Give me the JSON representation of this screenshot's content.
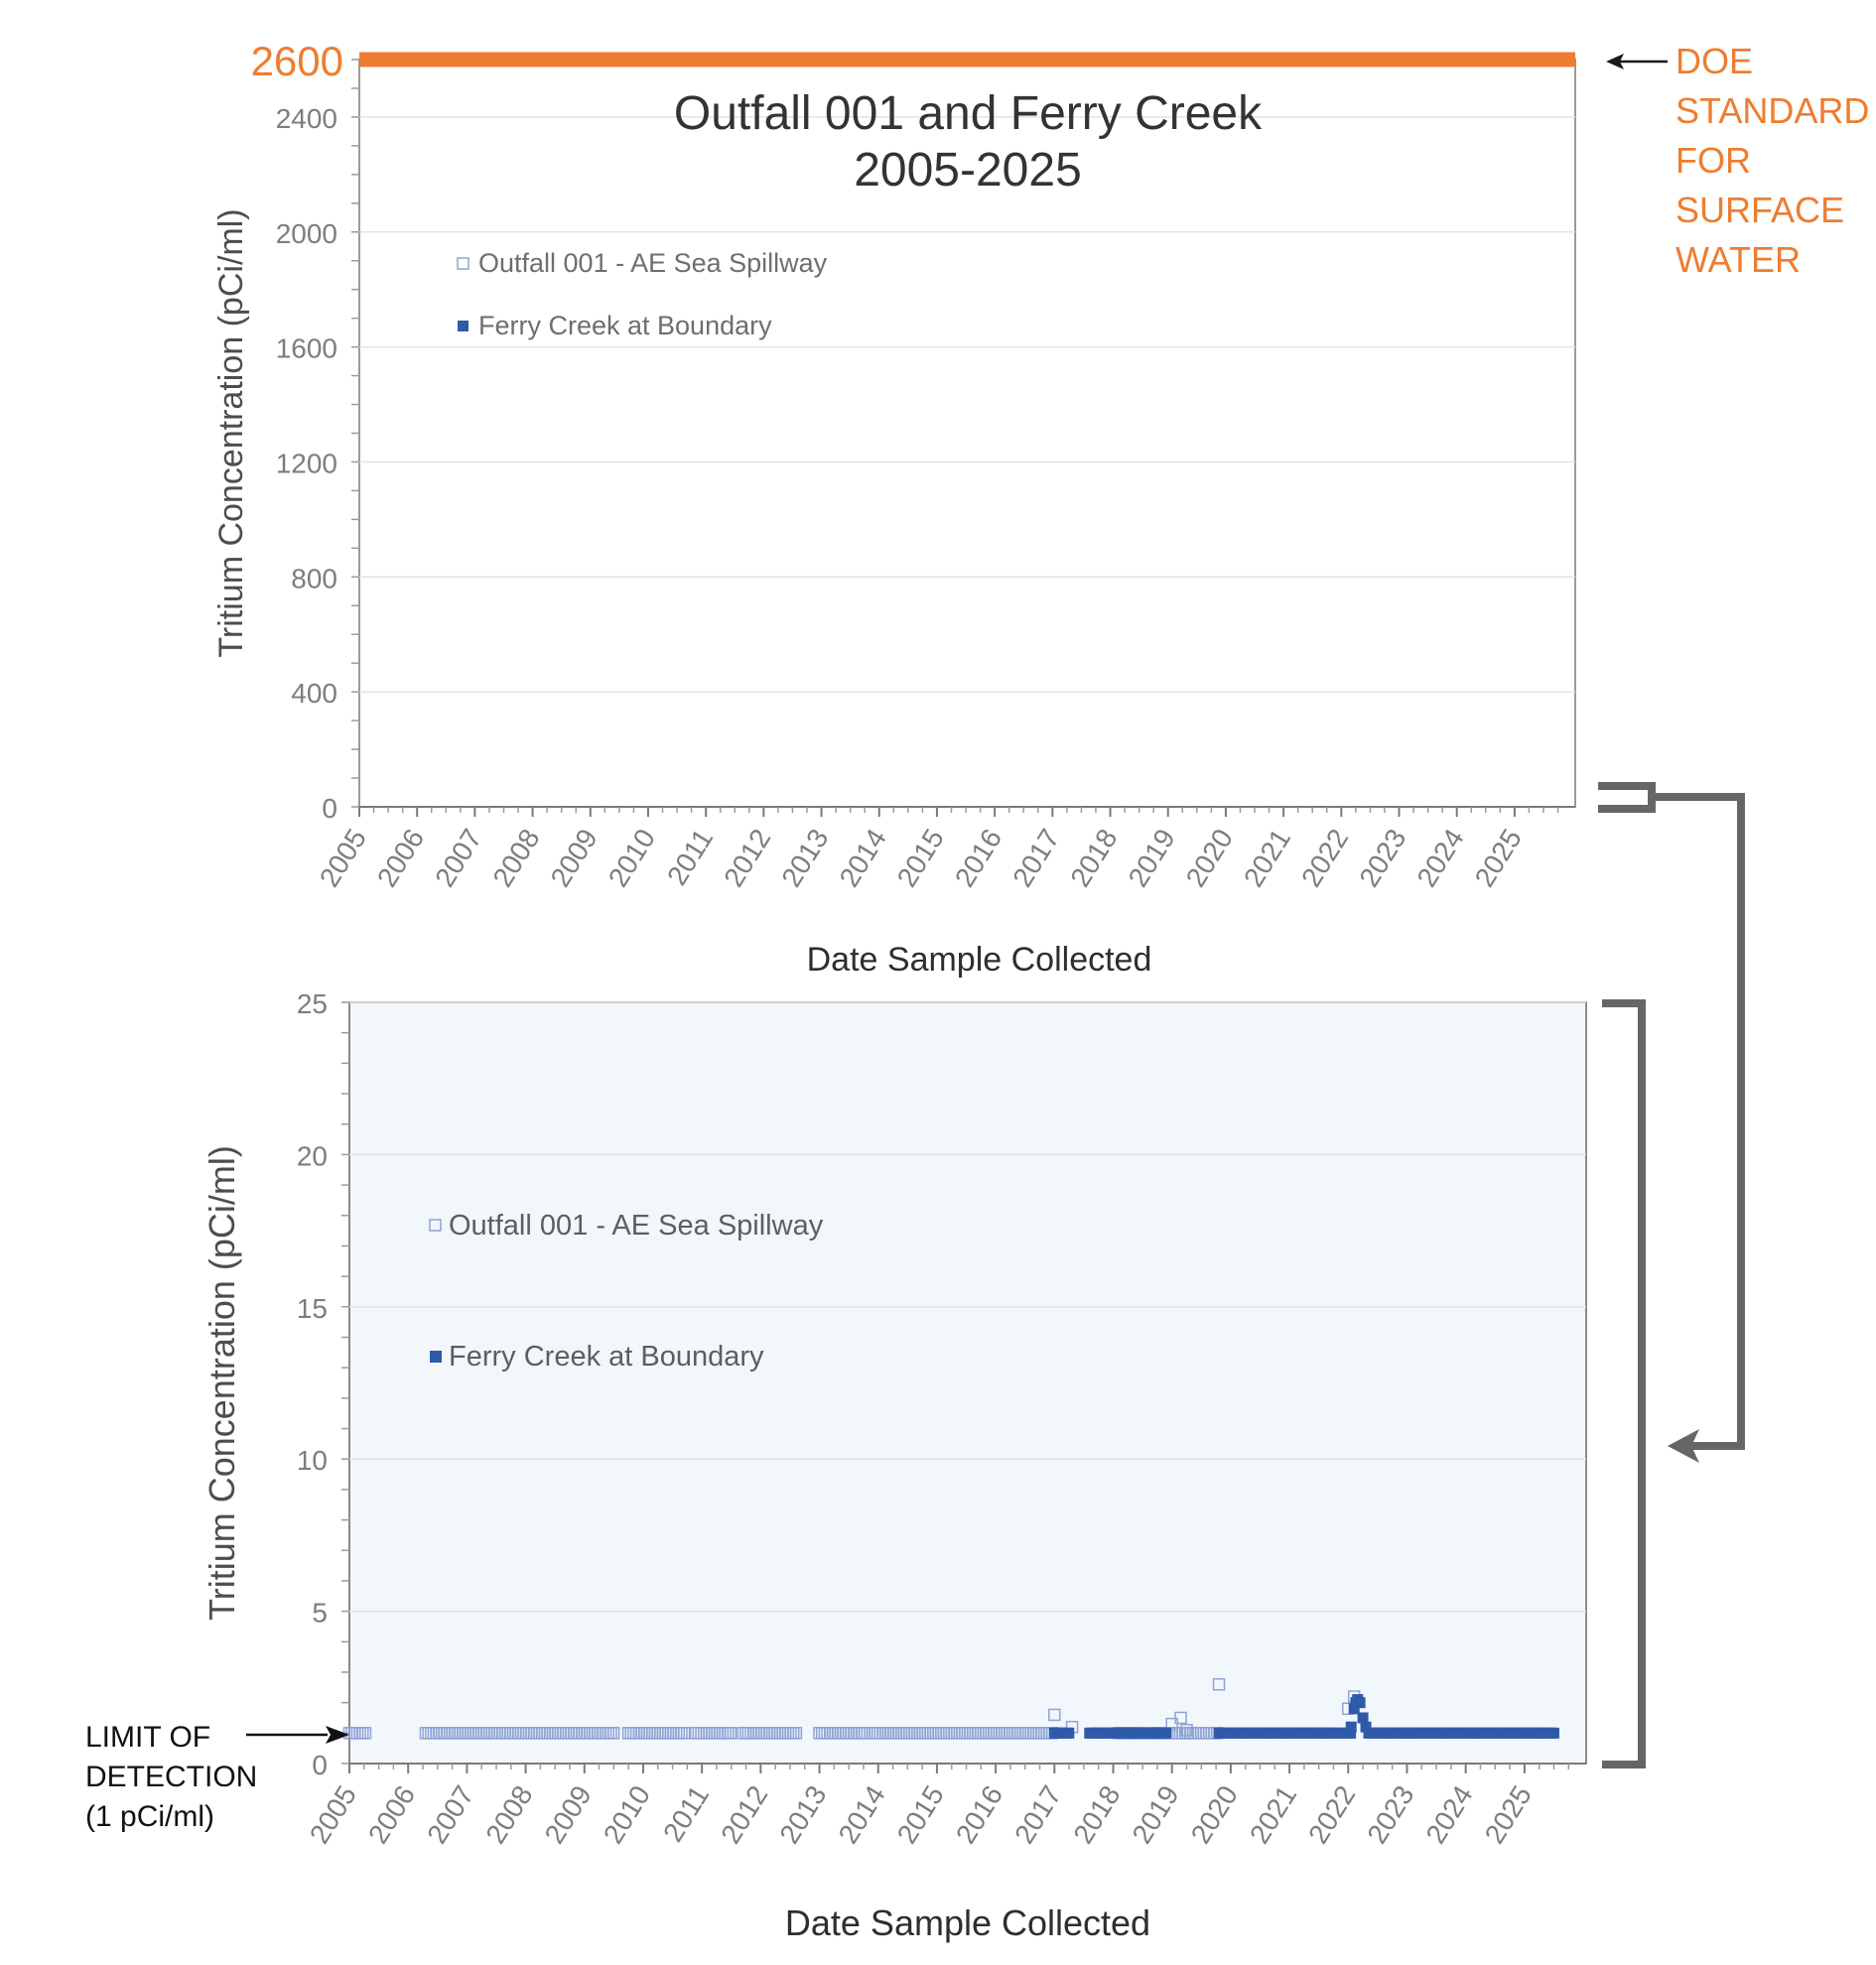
{
  "chart_data": [
    {
      "type": "scatter",
      "title": "Outfall 001 and Ferry Creek",
      "subtitle": "2005-2025",
      "xlabel": "Date Sample Collected",
      "ylabel": "Tritium Concentration (pCi/ml)",
      "ylim": [
        0,
        2600
      ],
      "yticks": [
        0,
        400,
        800,
        1200,
        1600,
        2000,
        2400
      ],
      "xlim": [
        2005,
        2026.05
      ],
      "xticks": [
        "2005",
        "2006",
        "2007",
        "2008",
        "2009",
        "2010",
        "2011",
        "2012",
        "2013",
        "2014",
        "2015",
        "2016",
        "2017",
        "2018",
        "2019",
        "2020",
        "2021",
        "2022",
        "2023",
        "2024",
        "2025"
      ],
      "grid": true,
      "legend_position": "upper-left",
      "reference_line": {
        "value": 2600,
        "value_label": "2600",
        "label": "DOE STANDARD FOR SURFACE WATER",
        "label_lines": [
          "DOE",
          "STANDARD",
          "FOR",
          "SURFACE",
          "WATER"
        ],
        "color": "#ed7d31"
      },
      "series": [
        {
          "name": "Outfall 001 - AE Sea Spillway",
          "marker": "open-square",
          "color": "#8fa3d6"
        },
        {
          "name": "Ferry Creek at Boundary",
          "marker": "filled-square",
          "color": "#2f5aa8"
        }
      ]
    },
    {
      "type": "scatter",
      "xlabel": "Date Sample Collected",
      "ylabel": "Tritium Concentration (pCi/ml)",
      "ylim": [
        0,
        25
      ],
      "yticks": [
        0,
        5,
        10,
        15,
        20,
        25
      ],
      "xlim": [
        2005,
        2026.05
      ],
      "xticks": [
        "2005",
        "2006",
        "2007",
        "2008",
        "2009",
        "2010",
        "2011",
        "2012",
        "2013",
        "2014",
        "2015",
        "2016",
        "2017",
        "2018",
        "2019",
        "2020",
        "2021",
        "2022",
        "2023",
        "2024",
        "2025"
      ],
      "grid": true,
      "legend_position": "upper-left",
      "annotation": {
        "value": 1,
        "label_lines": [
          "LIMIT OF",
          "DETECTION",
          "(1 pCi/ml)"
        ]
      },
      "series": [
        {
          "name": "Outfall 001 - AE Sea Spillway",
          "marker": "open-square",
          "color": "#8fa3d6",
          "default_value": 1,
          "x_ranges": [
            [
              2005.0,
              2005.3
            ],
            [
              2006.3,
              2009.5
            ],
            [
              2009.75,
              2010.7
            ],
            [
              2010.9,
              2011.5
            ],
            [
              2011.7,
              2012.6
            ],
            [
              2013.0,
              2013.8
            ],
            [
              2013.9,
              2017.0
            ],
            [
              2018.1,
              2019.8
            ]
          ],
          "points": [
            {
              "x": 2017.0,
              "y": 1.6
            },
            {
              "x": 2017.3,
              "y": 1.2
            },
            {
              "x": 2019.0,
              "y": 1.3
            },
            {
              "x": 2019.15,
              "y": 1.5
            },
            {
              "x": 2019.25,
              "y": 1.1
            },
            {
              "x": 2019.8,
              "y": 2.6
            },
            {
              "x": 2022.0,
              "y": 1.8
            },
            {
              "x": 2022.1,
              "y": 2.2
            }
          ]
        },
        {
          "name": "Ferry Creek at Boundary",
          "marker": "filled-square",
          "color": "#2f5aa8",
          "default_value": 1,
          "x_ranges": [
            [
              2017.0,
              2017.25
            ],
            [
              2017.6,
              2018.5
            ],
            [
              2018.65,
              2018.9
            ],
            [
              2019.8,
              2021.8
            ],
            [
              2021.9,
              2022.05
            ],
            [
              2022.35,
              2025.5
            ]
          ],
          "points": [
            {
              "x": 2022.05,
              "y": 1.2
            },
            {
              "x": 2022.1,
              "y": 1.8
            },
            {
              "x": 2022.13,
              "y": 2.0
            },
            {
              "x": 2022.16,
              "y": 2.1
            },
            {
              "x": 2022.2,
              "y": 2.0
            },
            {
              "x": 2022.25,
              "y": 1.5
            },
            {
              "x": 2022.3,
              "y": 1.2
            }
          ]
        }
      ]
    }
  ]
}
